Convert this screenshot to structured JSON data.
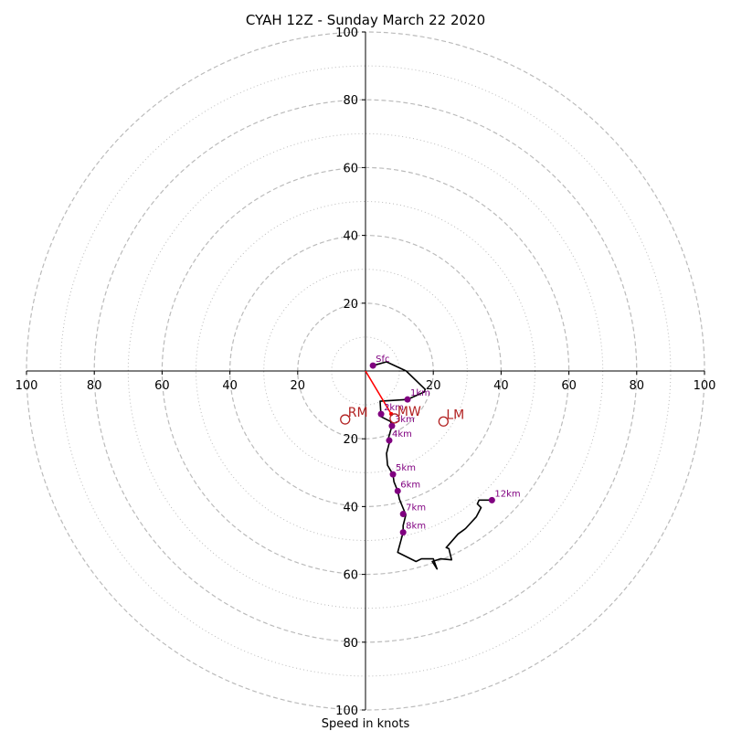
{
  "chart_data": {
    "type": "hodograph",
    "title": "CYAH 12Z - Sunday March 22 2020",
    "xlabel": "Speed in knots",
    "axis_max": 100,
    "ring_major": [
      20,
      40,
      60,
      80,
      100
    ],
    "ring_minor": [
      10,
      30,
      50,
      70,
      90
    ],
    "x_ticks": [
      {
        "v": -100,
        "label": "100"
      },
      {
        "v": -80,
        "label": "80"
      },
      {
        "v": -60,
        "label": "60"
      },
      {
        "v": -40,
        "label": "40"
      },
      {
        "v": -20,
        "label": "20"
      },
      {
        "v": 20,
        "label": "20"
      },
      {
        "v": 40,
        "label": "40"
      },
      {
        "v": 60,
        "label": "60"
      },
      {
        "v": 80,
        "label": "80"
      },
      {
        "v": 100,
        "label": "100"
      }
    ],
    "y_ticks": [
      {
        "v": 100,
        "label": "100"
      },
      {
        "v": 80,
        "label": "80"
      },
      {
        "v": 60,
        "label": "60"
      },
      {
        "v": 40,
        "label": "40"
      },
      {
        "v": 20,
        "label": "20"
      },
      {
        "v": -20,
        "label": "20"
      },
      {
        "v": -40,
        "label": "40"
      },
      {
        "v": -60,
        "label": "60"
      },
      {
        "v": -80,
        "label": "80"
      },
      {
        "v": -100,
        "label": "100"
      }
    ],
    "hodograph_trace": [
      [
        2.2,
        1.6
      ],
      [
        6.2,
        2.7
      ],
      [
        12,
        0
      ],
      [
        17.6,
        -5.4
      ],
      [
        17.3,
        -6.2
      ],
      [
        12.4,
        -8.4
      ],
      [
        9.2,
        -8.6
      ],
      [
        4.3,
        -8.9
      ],
      [
        4.6,
        -13.5
      ],
      [
        7.4,
        -14.9
      ],
      [
        7.8,
        -16.2
      ],
      [
        6.8,
        -19.7
      ],
      [
        7,
        -21.3
      ],
      [
        6.2,
        -24.3
      ],
      [
        6.5,
        -27.8
      ],
      [
        8.1,
        -30.5
      ],
      [
        8.4,
        -32.7
      ],
      [
        9.5,
        -35.4
      ],
      [
        10,
        -37.8
      ],
      [
        11.1,
        -40.5
      ],
      [
        11.9,
        -42.4
      ],
      [
        11.1,
        -45.6
      ],
      [
        11.1,
        -47.6
      ],
      [
        9.5,
        -53.5
      ],
      [
        14.9,
        -56.2
      ],
      [
        16.5,
        -55.4
      ],
      [
        20,
        -55.4
      ],
      [
        20.8,
        -57.6
      ],
      [
        21.1,
        -58.4
      ],
      [
        19.7,
        -56.2
      ],
      [
        22.2,
        -55.4
      ],
      [
        25.4,
        -55.7
      ],
      [
        24.6,
        -52.4
      ],
      [
        23.8,
        -52.1
      ],
      [
        27.3,
        -48.1
      ],
      [
        29.5,
        -46.5
      ],
      [
        32.7,
        -43
      ],
      [
        34.1,
        -40.3
      ],
      [
        33,
        -39.2
      ],
      [
        33.5,
        -38.1
      ],
      [
        34.9,
        -38.1
      ],
      [
        37.3,
        -38.1
      ]
    ],
    "height_markers": [
      {
        "label": "Sfc",
        "u": 2.2,
        "v": 1.6
      },
      {
        "label": "1km",
        "u": 12.4,
        "v": -8.4
      },
      {
        "label": "2km",
        "u": 4.6,
        "v": -12.7
      },
      {
        "label": "3km",
        "u": 7.8,
        "v": -16.2
      },
      {
        "label": "4km",
        "u": 7,
        "v": -20.5
      },
      {
        "label": "5km",
        "u": 8.1,
        "v": -30.5
      },
      {
        "label": "6km",
        "u": 9.5,
        "v": -35.4
      },
      {
        "label": "7km",
        "u": 11.1,
        "v": -42.2
      },
      {
        "label": "8km",
        "u": 11.1,
        "v": -47.6
      },
      {
        "label": "12km",
        "u": 37.3,
        "v": -38.1
      }
    ],
    "storm_motions": [
      {
        "label": "RM",
        "u": -6,
        "v": -14.3
      },
      {
        "label": "MW",
        "u": 8.6,
        "v": -14
      },
      {
        "label": "LM",
        "u": 23,
        "v": -14.9
      }
    ],
    "shear_vector": {
      "from": [
        0,
        0
      ],
      "to": [
        7.6,
        -12.7
      ]
    },
    "colors": {
      "trace": "#000000",
      "markers": "#800080",
      "storm_motion": "#b22222",
      "shear_vector": "#ff0000",
      "ring": "#bbbbbb",
      "axis": "#000000"
    }
  }
}
